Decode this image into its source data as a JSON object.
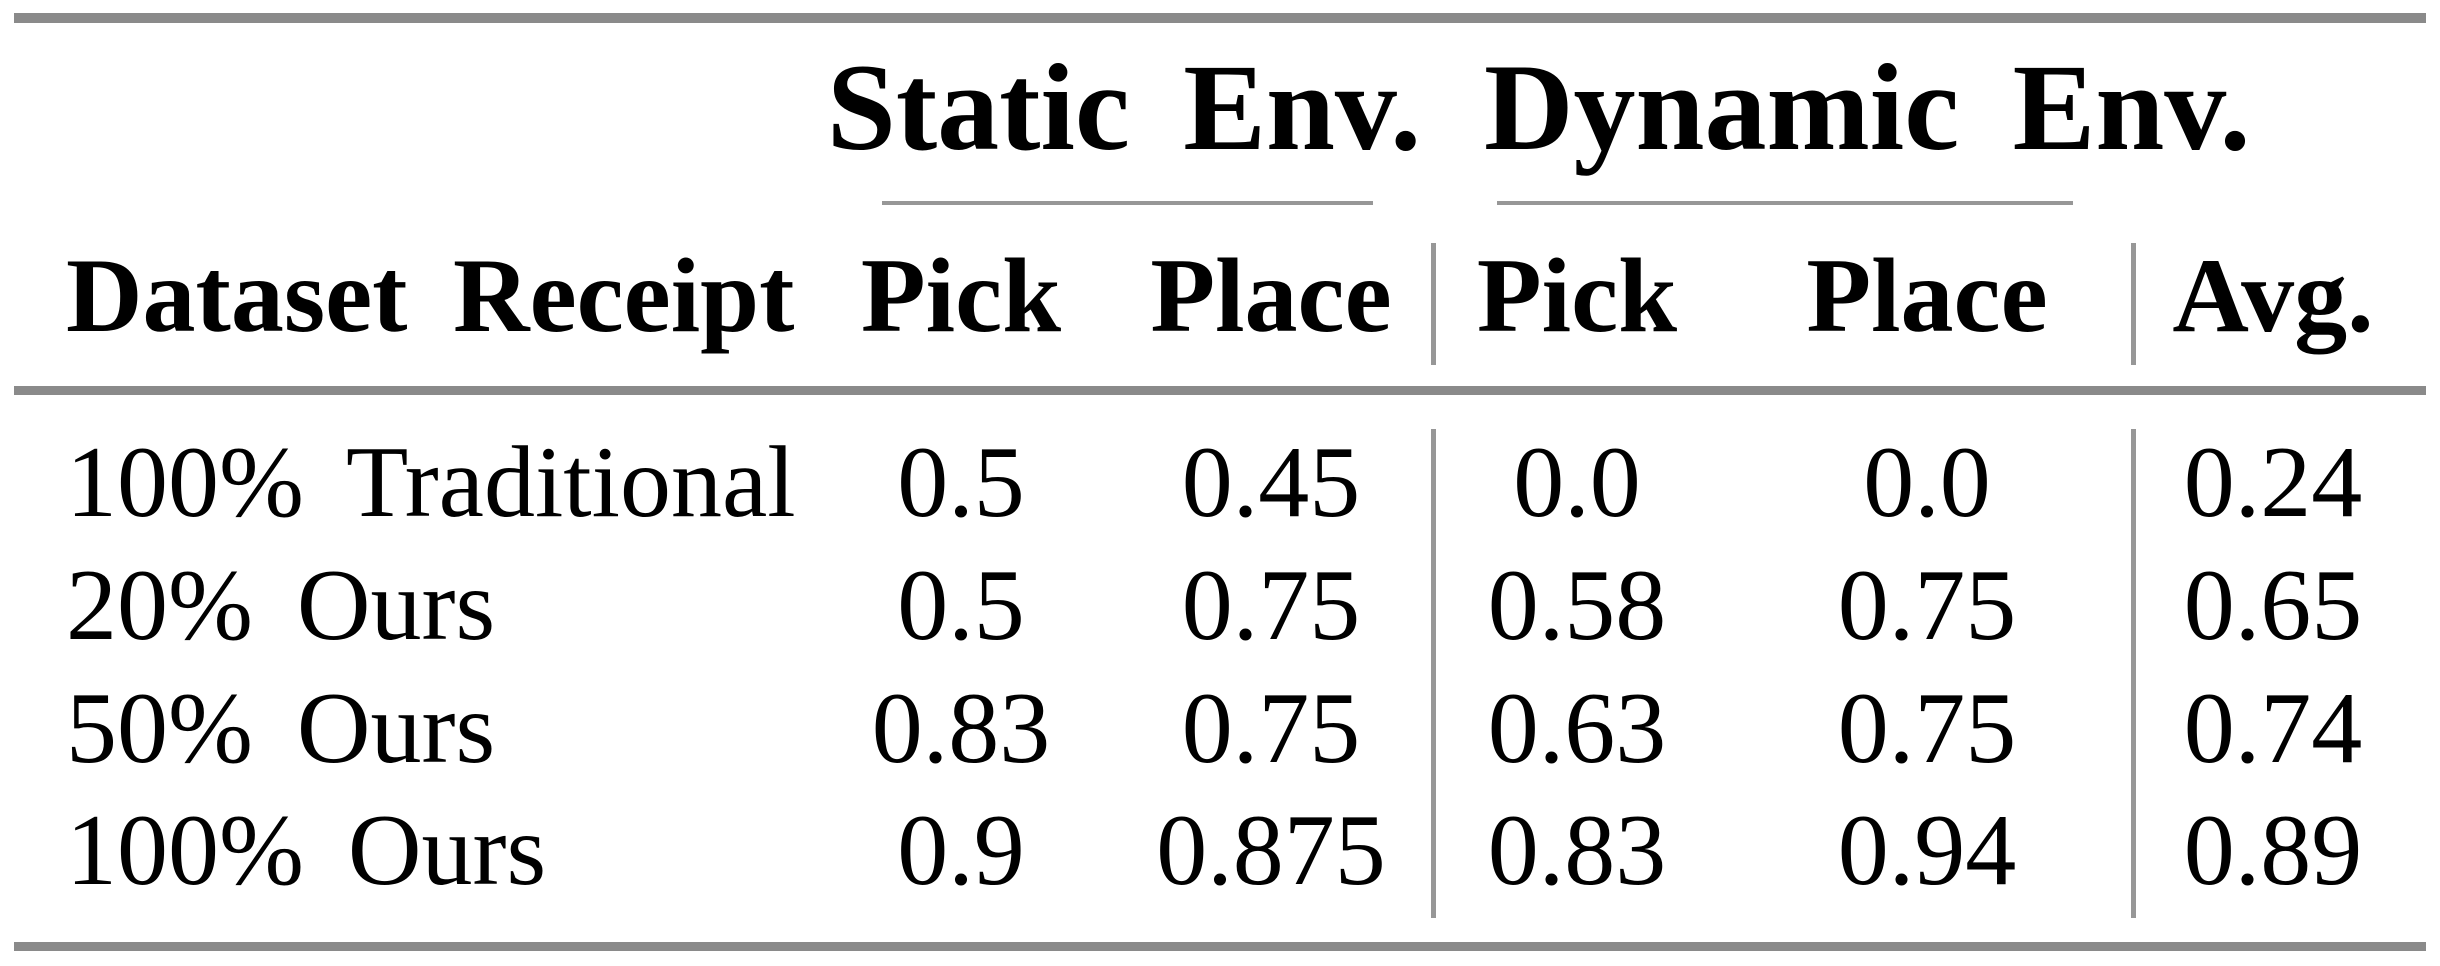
{
  "page": {
    "background": "#ffffff"
  },
  "colors": {
    "text": "#000000",
    "rule_heavy": "#8a8a8a",
    "rule_light": "#979797"
  },
  "table": {
    "group_headers": {
      "static": "Static Env.",
      "dynamic": "Dynamic Env."
    },
    "column_headers": {
      "dataset": "Dataset Receipt",
      "static_pick": "Pick",
      "static_place": "Place",
      "dynamic_pick": "Pick",
      "dynamic_place": "Place",
      "avg": "Avg."
    },
    "rows": [
      {
        "label": "100% Traditional",
        "static_pick": "0.5",
        "static_place": "0.45",
        "dynamic_pick": "0.0",
        "dynamic_place": "0.0",
        "avg": "0.24"
      },
      {
        "label": "20% Ours",
        "static_pick": "0.5",
        "static_place": "0.75",
        "dynamic_pick": "0.58",
        "dynamic_place": "0.75",
        "avg": "0.65"
      },
      {
        "label": "50% Ours",
        "static_pick": "0.83",
        "static_place": "0.75",
        "dynamic_pick": "0.63",
        "dynamic_place": "0.75",
        "avg": "0.74"
      },
      {
        "label": "100% Ours",
        "static_pick": "0.9",
        "static_place": "0.875",
        "dynamic_pick": "0.83",
        "dynamic_place": "0.94",
        "avg": "0.89"
      }
    ]
  }
}
